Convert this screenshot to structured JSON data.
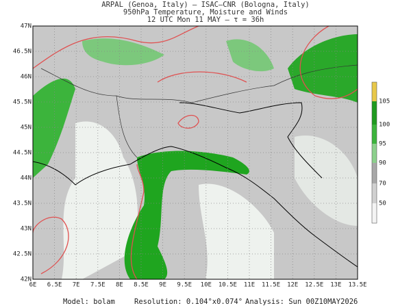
{
  "header": {
    "line1": "ARPAL (Genoa, Italy)  –  ISAC–CNR (Bologna, Italy)",
    "line2": "950hPa Temperature, Moisture and Winds",
    "line3": "12 UTC Mon 11 MAY  –  τ = 36h"
  },
  "map": {
    "lon_labels": [
      "6E",
      "6.5E",
      "7E",
      "7.5E",
      "8E",
      "8.5E",
      "9E",
      "9.5E",
      "10E",
      "10.5E",
      "11E",
      "11.5E",
      "12E",
      "12.5E",
      "13E",
      "13.5E"
    ],
    "lat_labels": [
      "47N",
      "46.5N",
      "46N",
      "45.5N",
      "45N",
      "44.5N",
      "44N",
      "43.5N",
      "43N",
      "42.5N",
      "42N"
    ]
  },
  "colorbar": {
    "labels": [
      105,
      100,
      95,
      90,
      70,
      50
    ],
    "colors": [
      "#e8c84a",
      "#1f9a1f",
      "#3cb43c",
      "#8cd08c",
      "#a8a8a8",
      "#d0d0d0",
      "#f4f4f4"
    ]
  },
  "footer": {
    "model": "Model: bolam",
    "resolution": "Resolution: 0.104°x0.074°",
    "analysis": "Analysis: Sun 00Z10MAY2026"
  }
}
